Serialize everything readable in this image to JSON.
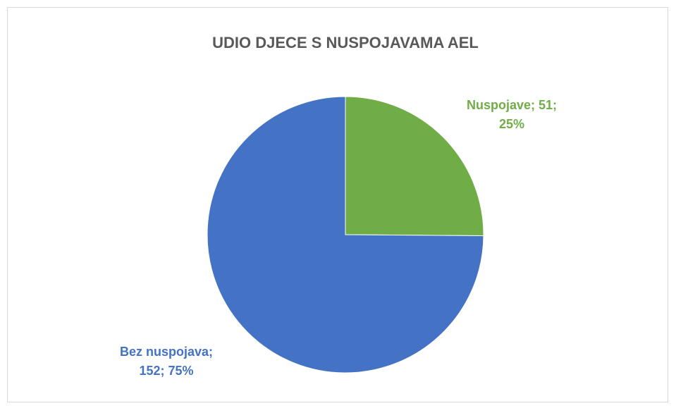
{
  "chart_data": {
    "type": "pie",
    "title": "UDIO DJECE S NUSPOJAVAMA AEL",
    "series": [
      {
        "name": "Nuspojave",
        "color": "#70ad47",
        "value": 51
      },
      {
        "name": "Bez nuspojava",
        "color": "#4472c4",
        "value": 152
      }
    ],
    "categories": [
      "Nuspojave",
      "Bez nuspojava"
    ],
    "values": [
      51,
      152
    ],
    "colors": [
      "#70ad47",
      "#4472c4"
    ],
    "value_labels": [
      "Nuspojave; 51; 25%",
      "Bez nuspojava; 152; 75%"
    ]
  }
}
